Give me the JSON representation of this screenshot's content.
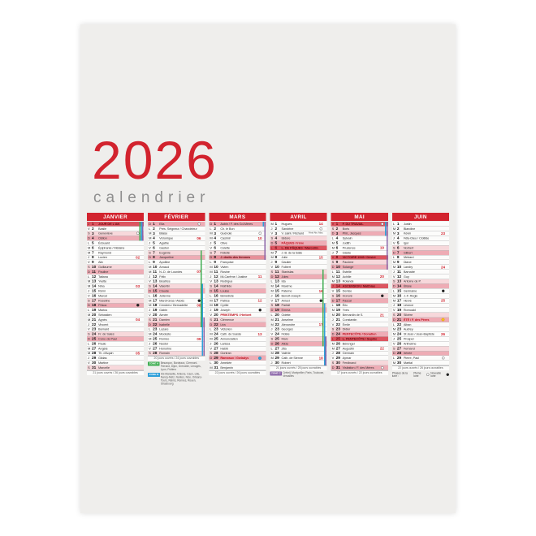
{
  "title": {
    "year": "2026",
    "subtitle": "calendrier"
  },
  "accent_color": "#d2232e",
  "months": [
    {
      "name": "JANVIER",
      "startDow": 3,
      "days": [
        "JOUR DE L'AN",
        "Basile",
        "Geneviève",
        "Odilon",
        "Édouard",
        "Épiphanie / Mélaine",
        "Raymond",
        "Lucien",
        "Alix",
        "Guillaume",
        "Pauline",
        "Tatiana",
        "Yvette",
        "Nina",
        "Rémi",
        "Marcel",
        "Roseline",
        "Prisca",
        "Marius",
        "Sébastien",
        "Agnès",
        "Vincent",
        "Barnard",
        "Fr. de Sales",
        "Conv. de Paul",
        "Paule",
        "Angèle",
        "Th. d'Aquin",
        "Gildas",
        "Martine",
        "Marcelle"
      ],
      "holidays": [
        1
      ],
      "feasts": [],
      "specials": [],
      "weeks": {
        "8": "02",
        "14": "03",
        "21": "04",
        "28": "05"
      },
      "moons": {
        "3": "full",
        "18": "new"
      },
      "icons": {},
      "notes": {},
      "workdays": "21 jours ouvrés / 26 jours ouvrables"
    },
    {
      "name": "FÉVRIER",
      "startDow": 6,
      "days": [
        "Ella",
        "Prés. Seigneur / Chandeleur",
        "Blaise",
        "Véronique",
        "Agathe",
        "Gaston",
        "Eugénie",
        "Jacqueline",
        "Apolline",
        "Arnaud",
        "N.-D. de Lourdes",
        "Félix",
        "Béatrice",
        "Valentin",
        "Claude",
        "Julienne",
        "Mardi Gras / Alexis",
        "Cendres / Bernadette",
        "Gabin",
        "Aimée",
        "Damien",
        "Isabelle",
        "Lazare",
        "Modeste",
        "Roméo",
        "Nestor",
        "Honorine",
        "Romain"
      ],
      "holidays": [],
      "feasts": [],
      "specials": [],
      "weeks": {
        "4": "06",
        "11": "07",
        "18": "08",
        "25": "09"
      },
      "moons": {
        "1": "full",
        "17": "new"
      },
      "icons": {},
      "notes": {},
      "workdays": "20 jours ouvrés / 24 jours ouvrables"
    },
    {
      "name": "MARS",
      "startDow": 6,
      "days": [
        "Aubin / F. des Gd-Mères",
        "Ch. le Bon",
        "Guénolé",
        "Casimir",
        "Olive",
        "Colette",
        "Félicité",
        "J. droits des femmes",
        "Françoise",
        "Vivien",
        "Rosine",
        "Mi-Carême / Justine",
        "Rodrigue",
        "Mathilde",
        "Louise",
        "Bénédicte",
        "Patrice",
        "Cyrille",
        "Joseph",
        "PRINTEMPS / Herbert",
        "Clémence",
        "Léa",
        "Victorien",
        "Cath. de Suède",
        "Annonciation",
        "Larissa",
        "Habib",
        "Gontran",
        "Rameaux / Gwladys",
        "Amédée",
        "Benjamin"
      ],
      "holidays": [],
      "feasts": [
        20,
        29
      ],
      "specials": [
        8
      ],
      "weeks": {
        "4": "10",
        "12": "11",
        "17": "12",
        "24": "13"
      },
      "moons": {
        "3": "full",
        "19": "new"
      },
      "icons": {
        "29": "clock"
      },
      "notes": {},
      "workdays": "22 jours ouvrés / 26 jours ouvrables"
    },
    {
      "name": "AVRIL",
      "startDow": 2,
      "days": [
        "Hugues",
        "Sandrine",
        "V. saint / Richard",
        "Isidore",
        "PÂQUES / Irène",
        "L. DE PÂQUES / Marcellin",
        "J.-B. de la Salle",
        "Julie",
        "Gautier",
        "Fulbert",
        "Stanislas",
        "Jules",
        "Ida",
        "Maxime",
        "Paterne",
        "Benoît-Joseph",
        "Anicet",
        "Parfait",
        "Emma",
        "Odette",
        "Anselme",
        "Alexandre",
        "Georges",
        "Fidèle",
        "Marc",
        "Alida",
        "Zita",
        "Valérie",
        "Cath. de Sienne",
        "Robert"
      ],
      "holidays": [
        6
      ],
      "feasts": [
        5
      ],
      "specials": [],
      "weeks": {
        "1": "14",
        "8": "15",
        "15": "16",
        "22": "17",
        "29": "18"
      },
      "moons": {
        "2": "full",
        "17": "new"
      },
      "icons": {},
      "notes": {
        "3": "Férié Als.-Mos."
      },
      "workdays": "21 jours ouvrés / 25 jours ouvrables"
    },
    {
      "name": "MAI",
      "startDow": 4,
      "days": [
        "F. DU TRAVAIL",
        "Boris",
        "Phil., Jacques",
        "Sylvain",
        "Judith",
        "Prudence",
        "Gisèle",
        "VICTOIRE 1945 / Désiré",
        "Pacôme",
        "Solange",
        "Estelle",
        "Achille",
        "Rolande",
        "ASCENSION / Matthias",
        "Denise",
        "Honoré",
        "Pascal",
        "Éric",
        "Yves",
        "Bernardin de S.",
        "Constantin",
        "Émile",
        "Didier",
        "PENTECÔTE / Donatien",
        "L. PENTECÔTE / Sophie",
        "Bérenger",
        "Augustin",
        "Germain",
        "Aymar",
        "Ferdinand",
        "Visitation / F. des Mères"
      ],
      "holidays": [
        1,
        8,
        14,
        25
      ],
      "feasts": [
        24
      ],
      "specials": [],
      "weeks": {
        "6": "19",
        "12": "20",
        "20": "21",
        "27": "22"
      },
      "moons": {
        "1": "full",
        "16": "new",
        "31": "full"
      },
      "icons": {},
      "notes": {},
      "workdays": "17 jours ouvrés / 22 jours ouvrables"
    },
    {
      "name": "JUIN",
      "startDow": 0,
      "days": [
        "Justin",
        "Blandine",
        "Kévin",
        "Fête-Dieu / Clotilde",
        "Igor",
        "Norbert",
        "Gilbert",
        "Médard",
        "Diane",
        "Landry",
        "Barnabé",
        "Guy",
        "Antoine de P.",
        "Élisée",
        "Germaine",
        "J.-F. Régis",
        "Hervé",
        "Léonce",
        "Romuald",
        "Silvère",
        "ÉTÉ / F. des Pères",
        "Alban",
        "Audrey",
        "St Jean / Jean-Baptiste",
        "Prosper",
        "Anthelme",
        "Fernand",
        "Irénée",
        "Pierre, Paul",
        "Martial"
      ],
      "holidays": [],
      "feasts": [
        21
      ],
      "specials": [],
      "weeks": {
        "3": "23",
        "10": "24",
        "17": "25",
        "24": "26"
      },
      "moons": {
        "15": "new",
        "29": "full"
      },
      "icons": {
        "21": "sun"
      },
      "notes": {},
      "workdays": "22 jours ouvrés / 26 jours ouvrables"
    }
  ],
  "vacations": [
    {
      "month": 0,
      "zone": "A",
      "from": 1,
      "to": 4
    },
    {
      "month": 0,
      "zone": "B",
      "from": 1,
      "to": 4
    },
    {
      "month": 0,
      "zone": "C",
      "from": 1,
      "to": 4
    },
    {
      "month": 1,
      "zone": "A",
      "from": 7,
      "to": 22
    },
    {
      "month": 1,
      "zone": "B",
      "from": 14,
      "to": 28
    },
    {
      "month": 1,
      "zone": "C",
      "from": 21,
      "to": 28
    },
    {
      "month": 2,
      "zone": "B",
      "from": 1,
      "to": 1
    },
    {
      "month": 2,
      "zone": "C",
      "from": 1,
      "to": 8
    },
    {
      "month": 3,
      "zone": "A",
      "from": 11,
      "to": 26
    },
    {
      "month": 3,
      "zone": "B",
      "from": 18,
      "to": 30
    },
    {
      "month": 3,
      "zone": "C",
      "from": 25,
      "to": 30
    },
    {
      "month": 4,
      "zone": "B",
      "from": 1,
      "to": 3
    },
    {
      "month": 4,
      "zone": "C",
      "from": 1,
      "to": 10
    }
  ],
  "zones": {
    "a": {
      "label": "ZONE A",
      "cities": "Besançon, Bordeaux, Clermont-Ferrand, Dijon, Grenoble, Limoges, Lyon, Poitiers"
    },
    "b": {
      "label": "ZONE B",
      "cities": "Aix-Marseille, Amiens, Caen, Lille, Nancy-Metz, Nantes, Nice, Orléans-Tours, Reims, Rennes, Rouen, Strasbourg"
    },
    "c": {
      "label": "ZONE C",
      "cities": "Créteil, Montpellier, Paris, Toulouse, Versailles"
    }
  },
  "moon_legend": {
    "prefix": "Phases de la lune :",
    "full": "Pleine lune",
    "new": "Nouvelle lune"
  }
}
